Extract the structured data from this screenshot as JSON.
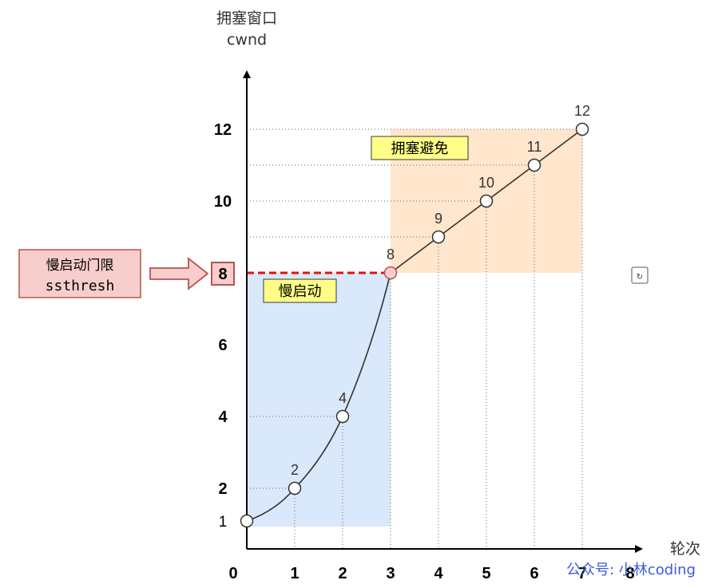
{
  "y_axis_title_line1": "拥塞窗口",
  "y_axis_title_line2": "cwnd",
  "x_axis_title": "轮次",
  "slow_start_label": "慢启动",
  "congestion_avoidance_label": "拥塞避免",
  "ssthresh_line1": "慢启动门限",
  "ssthresh_line2": "ssthresh",
  "ssthresh_value": "8",
  "watermark": "公众号: 小林coding",
  "colors": {
    "slow_start_fill": "#dae8fc",
    "congestion_avoidance_fill": "#ffe6cc",
    "label_box_fill": "#ffff88",
    "ssthresh_box_fill": "#f8cecc",
    "ssthresh_border": "#b85450",
    "threshold_line": "#e51400",
    "curve": "#333333"
  },
  "chart_data": {
    "type": "line",
    "xlabel": "轮次",
    "ylabel": "拥塞窗口 cwnd",
    "x_ticks": [
      "0",
      "1",
      "2",
      "3",
      "4",
      "5",
      "6",
      "7",
      "8"
    ],
    "y_ticks": [
      "1",
      "2",
      "4",
      "6",
      "8",
      "10",
      "12"
    ],
    "points": [
      {
        "x": 0,
        "y": 1,
        "label": ""
      },
      {
        "x": 1,
        "y": 2,
        "label": "2"
      },
      {
        "x": 2,
        "y": 4,
        "label": "4"
      },
      {
        "x": 3,
        "y": 8,
        "label": "8"
      },
      {
        "x": 4,
        "y": 9,
        "label": "9"
      },
      {
        "x": 5,
        "y": 10,
        "label": "10"
      },
      {
        "x": 6,
        "y": 11,
        "label": "11"
      },
      {
        "x": 7,
        "y": 12,
        "label": "12"
      }
    ],
    "threshold": 8,
    "regions": [
      {
        "name": "慢启动",
        "x_from": 0,
        "x_to": 3,
        "y_from": 1,
        "y_to": 8
      },
      {
        "name": "拥塞避免",
        "x_from": 3,
        "x_to": 7,
        "y_from": 8,
        "y_to": 12
      }
    ]
  }
}
